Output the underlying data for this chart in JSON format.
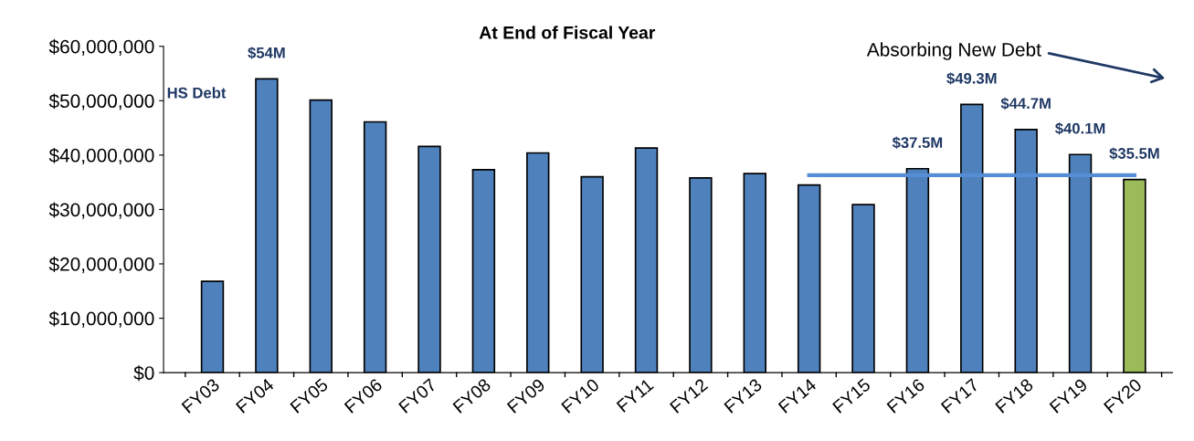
{
  "chart_data": {
    "type": "bar",
    "title": "At End of Fiscal Year",
    "categories": [
      "FY03",
      "FY04",
      "FY05",
      "FY06",
      "FY07",
      "FY08",
      "FY09",
      "FY10",
      "FY11",
      "FY12",
      "FY13",
      "FY14",
      "FY15",
      "FY16",
      "FY17",
      "FY18",
      "FY19",
      "FY20"
    ],
    "series": [
      {
        "values": [
          16800000,
          54000000,
          50100000,
          46100000,
          41600000,
          37300000,
          40400000,
          36000000,
          41300000,
          35800000,
          36600000,
          34500000,
          30900000,
          37500000,
          49300000,
          44700000,
          40100000,
          35500000
        ],
        "colors": [
          "#4f81bd",
          "#4f81bd",
          "#4f81bd",
          "#4f81bd",
          "#4f81bd",
          "#4f81bd",
          "#4f81bd",
          "#4f81bd",
          "#4f81bd",
          "#4f81bd",
          "#4f81bd",
          "#4f81bd",
          "#4f81bd",
          "#4f81bd",
          "#4f81bd",
          "#4f81bd",
          "#4f81bd",
          "#9bbb59"
        ],
        "value_labels": [
          null,
          "$54M",
          null,
          null,
          null,
          null,
          null,
          null,
          null,
          null,
          null,
          null,
          null,
          "$37.5M",
          "$49.3M",
          "$44.7M",
          "$40.1M",
          "$35.5M"
        ]
      },
      {
        "type": "line",
        "color": "#558ed5",
        "values": [
          null,
          null,
          null,
          null,
          null,
          null,
          null,
          null,
          null,
          null,
          null,
          36300000,
          36300000,
          36300000,
          36300000,
          36300000,
          36300000,
          36300000
        ]
      }
    ],
    "annotations": [
      {
        "text": "HS Debt",
        "x": "FY04",
        "y": 54000000
      },
      "Absorbing New Debt"
    ],
    "ylim": [
      0,
      60000000
    ],
    "yticks": [
      {
        "value": 0,
        "label": "$0"
      },
      {
        "value": 10000000,
        "label": "$10,000,000"
      },
      {
        "value": 20000000,
        "label": "$20,000,000"
      },
      {
        "value": 30000000,
        "label": "$30,000,000"
      },
      {
        "value": 40000000,
        "label": "$40,000,000"
      },
      {
        "value": 50000000,
        "label": "$50,000,000"
      },
      {
        "value": 60000000,
        "label": "$60,000,000"
      }
    ],
    "grid": false,
    "legend": false
  }
}
